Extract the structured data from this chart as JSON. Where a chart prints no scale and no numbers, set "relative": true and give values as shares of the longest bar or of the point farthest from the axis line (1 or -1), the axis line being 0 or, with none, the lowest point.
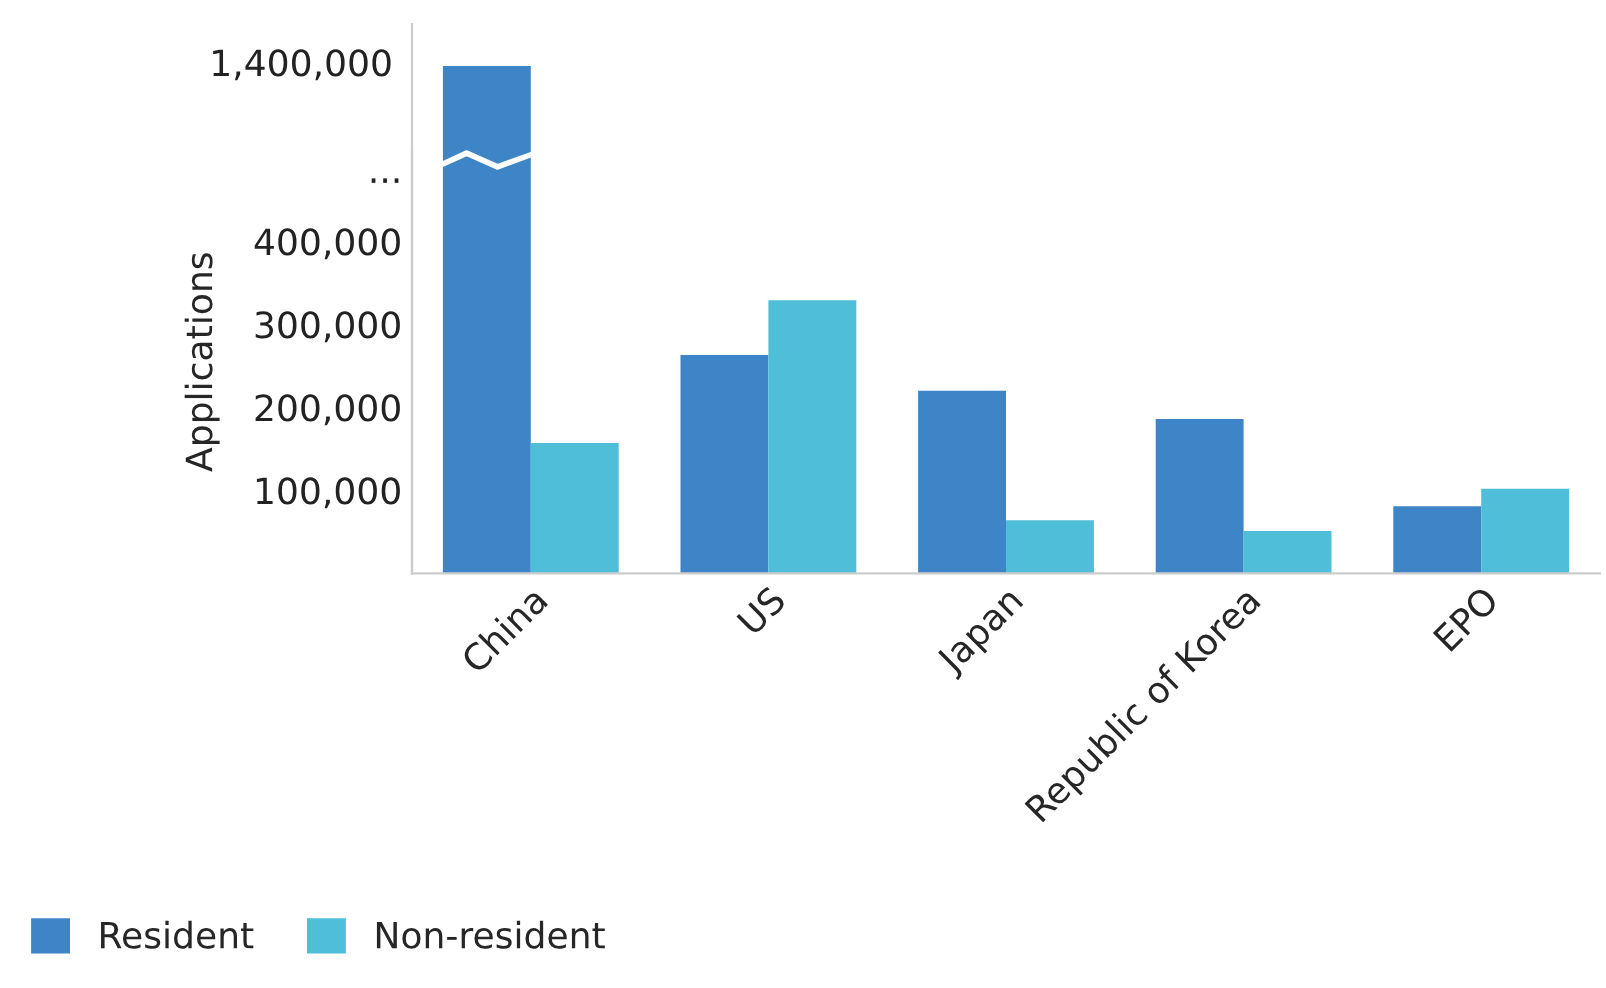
{
  "chart_data": [
    {
      "type": "bar",
      "categories": [
        null,
        null,
        null,
        null,
        null
      ],
      "relative": true,
      "annotations": [
        "1,400,000"
      ],
      "series": [
        {
          "color": "#3d85c6",
          "values": [
            1,
            null,
            null,
            null,
            null
          ]
        }
      ]
    },
    {
      "type": "bar",
      "categories": [
        "China",
        "US",
        "Japan",
        "Republic of Korea",
        "EPO"
      ],
      "ylabel": "Applications",
      "ylim": [
        0,
        510000
      ],
      "yticks": [
        {
          "value": 100000,
          "label": "100,000"
        },
        {
          "value": 200000,
          "label": "200,000"
        },
        {
          "value": 300000,
          "label": "300,000"
        },
        {
          "value": 400000,
          "label": "400,000"
        },
        {
          "value": 487000,
          "label": "..."
        }
      ],
      "legend": "bottom left",
      "series": [
        {
          "name": "Resident",
          "color": "#3d85c6",
          "values": [
            null,
            263000,
            220000,
            186000,
            81000
          ]
        },
        {
          "name": "Non-resident",
          "color": "#4fbfd9",
          "values": [
            157000,
            329000,
            64000,
            51000,
            102000
          ]
        }
      ]
    }
  ]
}
